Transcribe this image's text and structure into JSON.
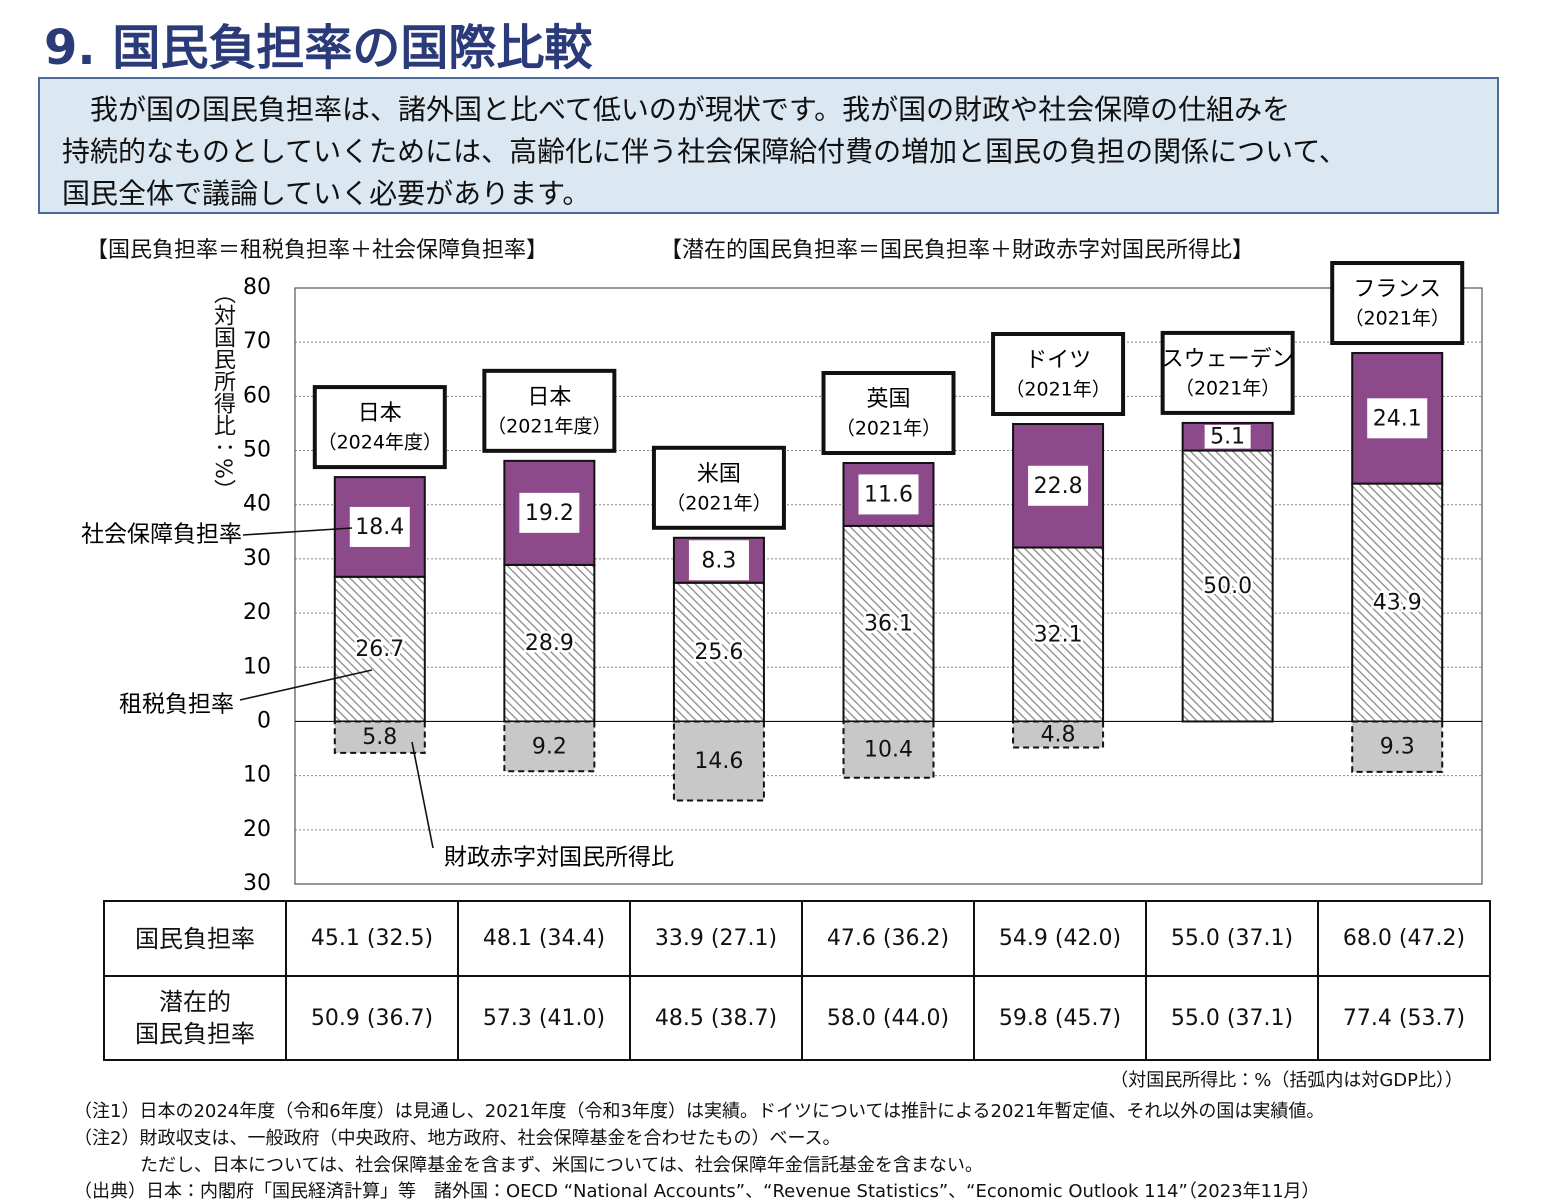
{
  "header": {
    "title": "9. 国民負担率の国際比較"
  },
  "intro": {
    "lines": [
      "　我が国の国民負担率は、諸外国と比べて低いのが現状です。我が国の財政や社会保障の仕組みを",
      "持続的なものとしていくためには、高齢化に伴う社会保障給付費の増加と国民の負担の関係について、",
      "国民全体で議論していく必要があります。"
    ]
  },
  "formulas": [
    "【国民負担率＝租税負担率＋社会保障負担率】",
    "【潜在的国民負担率＝国民負担率＋財政赤字対国民所得比】"
  ],
  "chart_data": {
    "type": "stacked-bar",
    "y_label": "（対国民所得比：%）",
    "categories": [
      "日本",
      "日本",
      "米国",
      "英国",
      "ドイツ",
      "スウェーデン",
      "フランス"
    ],
    "category_years": [
      "（2024年度）",
      "（2021年度）",
      "（2021年）",
      "（2021年）",
      "（2021年）",
      "（2021年）",
      "（2021年）"
    ],
    "series": [
      {
        "name": "租税負担率",
        "color": "#8a8a8a",
        "pattern": "hatch",
        "values": [
          26.7,
          28.9,
          25.6,
          36.1,
          32.1,
          50.0,
          43.9
        ],
        "value_labels": [
          "26.7",
          "28.9",
          "25.6",
          "36.1",
          "32.1",
          "50.0",
          "43.9"
        ]
      },
      {
        "name": "社会保障負担率",
        "color": "#8c4a8a",
        "values": [
          18.4,
          19.2,
          8.3,
          11.6,
          22.8,
          5.1,
          24.1
        ]
      },
      {
        "name": "財政赤字対国民所得比",
        "color": "#c8c8c8",
        "values": [
          -5.8,
          -9.2,
          -14.6,
          -10.4,
          -4.8,
          null,
          -9.3
        ],
        "value_labels": [
          "5.8",
          "9.2",
          "14.6",
          "10.4",
          "4.8",
          null,
          "9.3"
        ]
      }
    ],
    "ylim": [
      -30,
      80
    ],
    "yticks": [
      {
        "value": -30,
        "label": "30"
      },
      {
        "value": -20,
        "label": "20"
      },
      {
        "value": -10,
        "label": "10"
      },
      0,
      10,
      20,
      30,
      40,
      50,
      60,
      70,
      80
    ],
    "grid": true
  },
  "table": {
    "rows": [
      [
        "国民負担率",
        "45.1 (32.5)",
        "48.1 (34.4)",
        "33.9 (27.1)",
        "47.6 (36.2)",
        "54.9 (42.0)",
        "55.0 (37.1)",
        "68.0 (47.2)"
      ],
      [
        "潜在的\n国民負担率",
        "50.9 (36.7)",
        "57.3 (41.0)",
        "48.5 (38.7)",
        "58.0 (44.0)",
        "59.8 (45.7)",
        "55.0 (37.1)",
        "77.4 (53.7)"
      ]
    ]
  },
  "unit_note": "（対国民所得比：%（括弧内は対GDP比））",
  "notes": [
    "（注1）日本の2024年度（令和6年度）は見通し、2021年度（令和3年度）は実績。ドイツについては推計による2021年暫定値、それ以外の国は実績値。",
    "（注2）財政収支は、一般政府（中央政府、地方政府、社会保障基金を合わせたもの）ベース。",
    "ただし、日本については、社会保障基金を含まず、米国については、社会保障年金信託基金を含まない。",
    "（出典）日本：内閣府「国民経済計算」等　諸外国：OECD “National Accounts”、“Revenue Statistics”、“Economic Outlook 114”（2023年11月）"
  ]
}
